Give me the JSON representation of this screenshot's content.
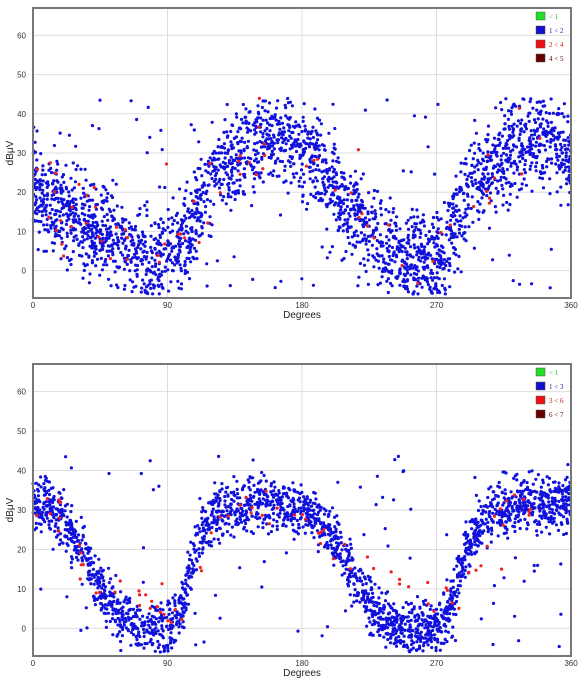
{
  "chart_data": [
    {
      "type": "scatter",
      "xlabel": "Degrees",
      "ylabel": "dBμV",
      "xlim": [
        0,
        360
      ],
      "ylim": [
        -7,
        67
      ],
      "x_ticks": [
        "0",
        "90",
        "180",
        "270",
        "360"
      ],
      "y_ticks": [
        "0",
        "10",
        "20",
        "30",
        "40",
        "50",
        "60"
      ],
      "grid": true,
      "legend_position": "top-right",
      "legend": [
        {
          "label": "< 1",
          "color": "#22dd22",
          "text_color": "#22bb22"
        },
        {
          "label": "1 < 2",
          "color": "#1111cc",
          "text_color": "#2222aa"
        },
        {
          "label": "2 < 4",
          "color": "#ee1111",
          "text_color": "#cc1111"
        },
        {
          "label": "4 < 5",
          "color": "#660000",
          "text_color": "#550000"
        }
      ],
      "series": [
        {
          "color": "#1111dd",
          "profile": [
            [
              0,
              22
            ],
            [
              10,
              18
            ],
            [
              30,
              12
            ],
            [
              60,
              6
            ],
            [
              80,
              2
            ],
            [
              100,
              6
            ],
            [
              120,
              24
            ],
            [
              150,
              33
            ],
            [
              170,
              33
            ],
            [
              190,
              28
            ],
            [
              210,
              15
            ],
            [
              240,
              5
            ],
            [
              260,
              2
            ],
            [
              275,
              4
            ],
            [
              290,
              18
            ],
            [
              310,
              30
            ],
            [
              340,
              33
            ],
            [
              360,
              30
            ]
          ],
          "spread": 9,
          "count": 2600,
          "seed": 11
        },
        {
          "color": "#ee2222",
          "profile": [
            [
              0,
              20
            ],
            [
              40,
              12
            ],
            [
              80,
              4
            ],
            [
              120,
              20
            ],
            [
              160,
              32
            ],
            [
              200,
              22
            ],
            [
              260,
              4
            ],
            [
              300,
              22
            ],
            [
              340,
              32
            ],
            [
              360,
              28
            ]
          ],
          "spread": 8,
          "count": 70,
          "seed": 23
        }
      ]
    },
    {
      "type": "scatter",
      "xlabel": "Degrees",
      "ylabel": "dBμV",
      "xlim": [
        0,
        360
      ],
      "ylim": [
        -7,
        67
      ],
      "x_ticks": [
        "0",
        "90",
        "180",
        "270",
        "360"
      ],
      "y_ticks": [
        "0",
        "10",
        "20",
        "30",
        "40",
        "50",
        "60"
      ],
      "grid": true,
      "legend_position": "top-right",
      "legend": [
        {
          "label": "< 1",
          "color": "#22dd22",
          "text_color": "#22bb22"
        },
        {
          "label": "1 < 3",
          "color": "#1111cc",
          "text_color": "#2222aa"
        },
        {
          "label": "3 < 6",
          "color": "#ee1111",
          "text_color": "#cc1111"
        },
        {
          "label": "6 < 7",
          "color": "#660000",
          "text_color": "#550000"
        }
      ],
      "series": [
        {
          "color": "#1111dd",
          "profile": [
            [
              0,
              32
            ],
            [
              15,
              30
            ],
            [
              30,
              22
            ],
            [
              45,
              10
            ],
            [
              60,
              3
            ],
            [
              75,
              0
            ],
            [
              90,
              0
            ],
            [
              100,
              5
            ],
            [
              110,
              22
            ],
            [
              125,
              30
            ],
            [
              150,
              32
            ],
            [
              180,
              30
            ],
            [
              200,
              25
            ],
            [
              215,
              12
            ],
            [
              230,
              3
            ],
            [
              250,
              0
            ],
            [
              270,
              0
            ],
            [
              280,
              5
            ],
            [
              290,
              20
            ],
            [
              305,
              30
            ],
            [
              330,
              32
            ],
            [
              360,
              32
            ]
          ],
          "spread": 5,
          "count": 2400,
          "seed": 37
        },
        {
          "color": "#ee2222",
          "profile": [
            [
              0,
              30
            ],
            [
              20,
              28
            ],
            [
              40,
              12
            ],
            [
              100,
              4
            ],
            [
              130,
              30
            ],
            [
              170,
              32
            ],
            [
              200,
              22
            ],
            [
              280,
              4
            ],
            [
              310,
              30
            ],
            [
              360,
              30
            ]
          ],
          "spread": 4,
          "count": 80,
          "seed": 53
        }
      ]
    }
  ]
}
